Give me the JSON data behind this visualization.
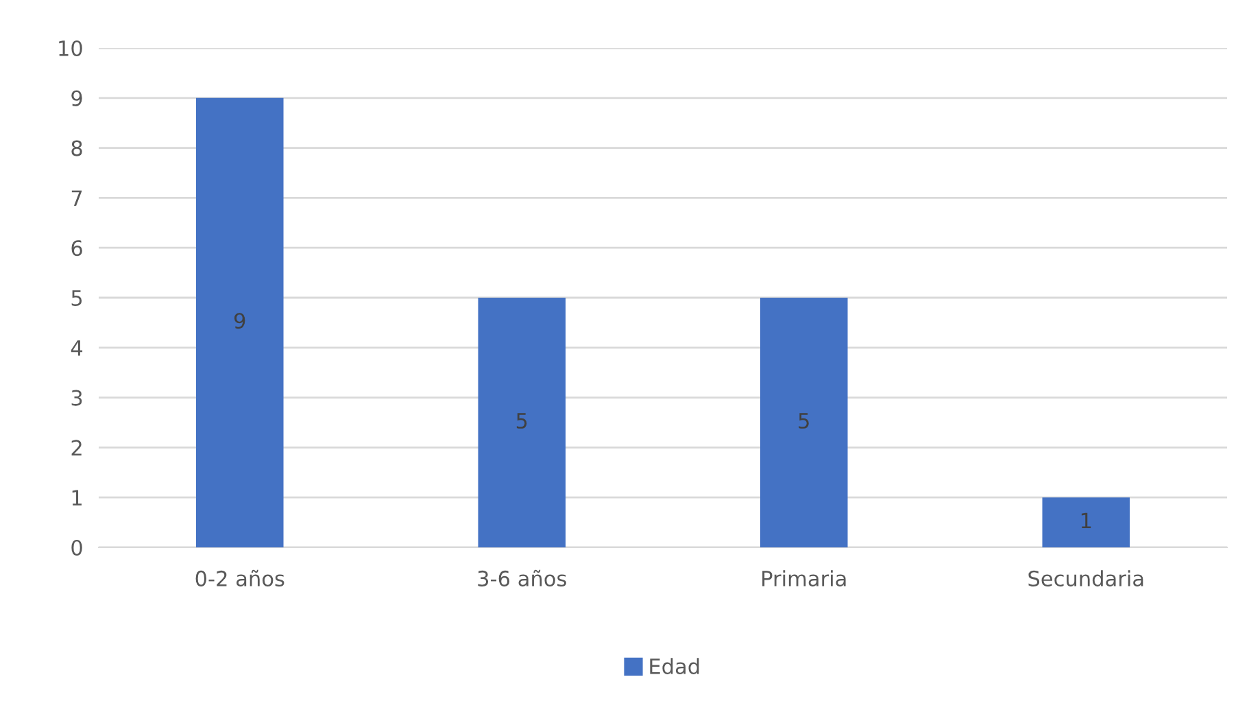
{
  "chart_data": {
    "type": "bar",
    "categories": [
      "0-2 años",
      "3-6 años",
      "Primaria",
      "Secundaria"
    ],
    "series": [
      {
        "name": "Edad",
        "color": "#4472c4",
        "values": [
          9,
          5,
          5,
          1
        ]
      }
    ],
    "ylim": [
      0,
      10
    ],
    "yticks": [
      0,
      1,
      2,
      3,
      4,
      5,
      6,
      7,
      8,
      9,
      10
    ],
    "grid": "y",
    "legend": "bottom",
    "data_labels": true
  }
}
